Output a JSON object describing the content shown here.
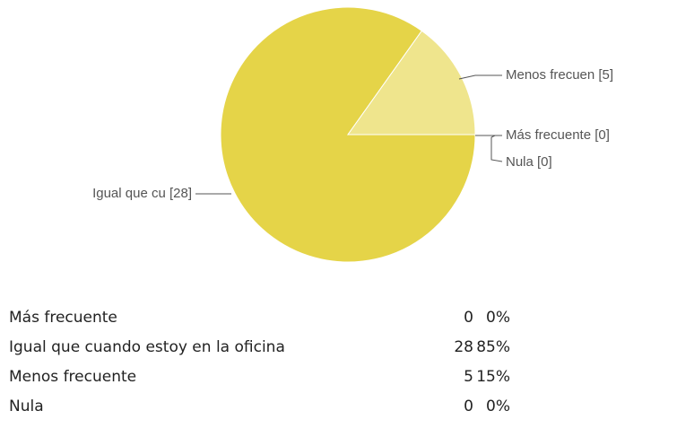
{
  "chart_data": {
    "type": "pie",
    "categories": [
      "Más frecuente",
      "Igual que cuando estoy en la oficina",
      "Menos frecuente",
      "Nula"
    ],
    "values": [
      0,
      28,
      5,
      0
    ],
    "value_labels": [
      "0%",
      "85%",
      "15%",
      "0%"
    ],
    "slice_labels": [
      "Más frecuente [0]",
      "Igual que cu [28]",
      "Menos frecuen [5]",
      "Nula [0]"
    ],
    "colors": [
      "#d9c63a",
      "#e5d448",
      "#efe58d",
      "#cbb92e"
    ]
  }
}
